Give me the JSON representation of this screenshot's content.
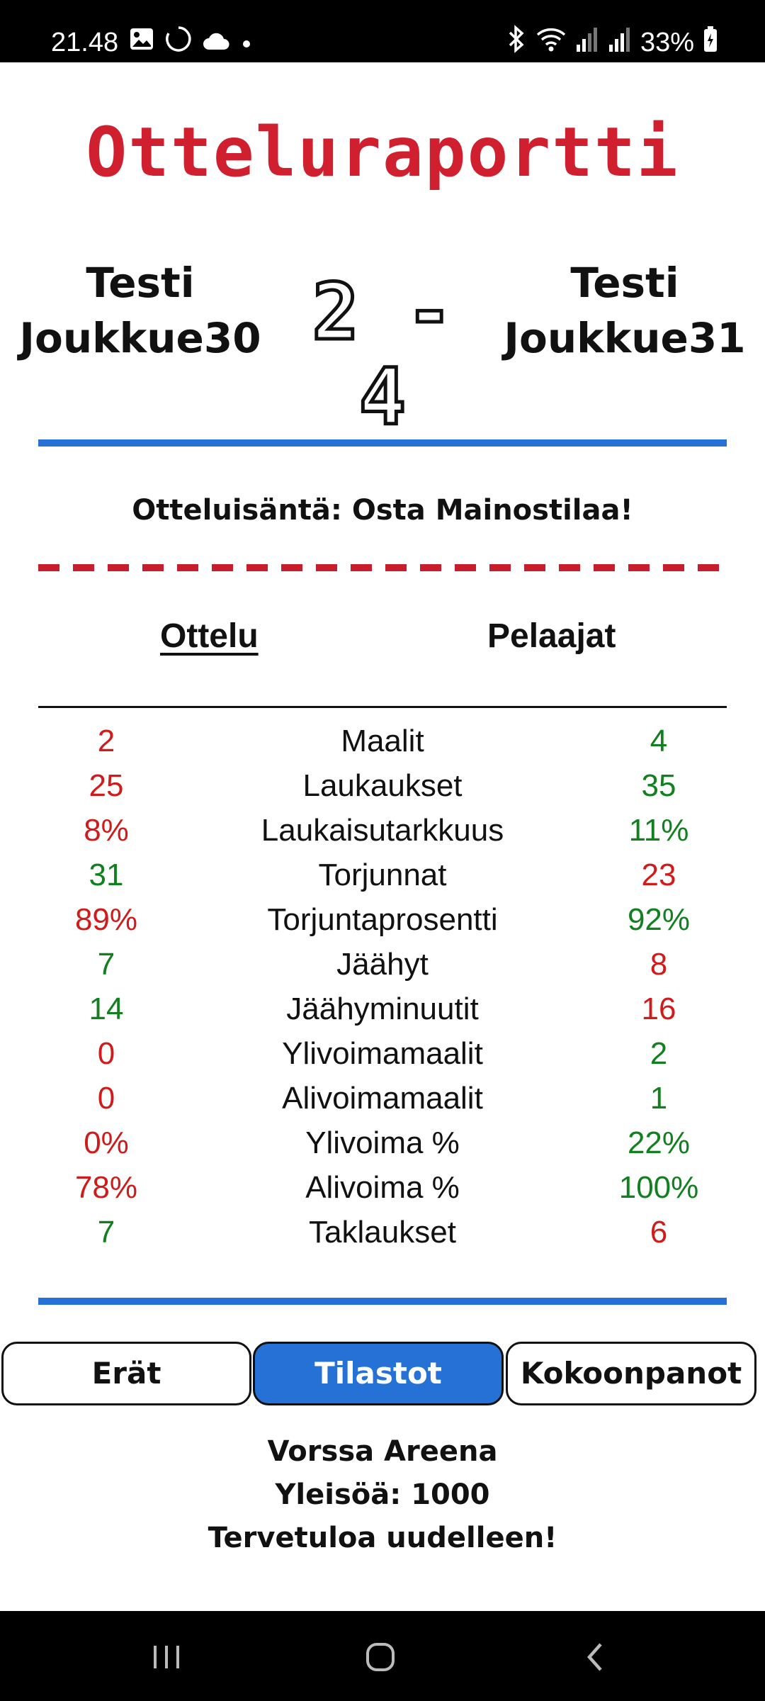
{
  "status_bar": {
    "time": "21.48",
    "battery": "33%",
    "left_icons": [
      "image-icon",
      "sync-icon",
      "cloud-icon",
      "dot-icon"
    ],
    "right_icons": [
      "bluetooth-icon",
      "wifi-icon",
      "signal-icon",
      "signal-icon",
      "battery-charging-icon"
    ]
  },
  "title": "Otteluraportti",
  "match": {
    "home_team": "Testi Joukkue30",
    "away_team": "Testi Joukkue31",
    "score": "2 - 4"
  },
  "host": "Otteluisäntä: Osta Mainostilaa!",
  "subtabs": {
    "match": "Ottelu",
    "players": "Pelaajat"
  },
  "stats": [
    {
      "label": "Maalit",
      "home": "2",
      "away": "4",
      "home_color": "red",
      "away_color": "green"
    },
    {
      "label": "Laukaukset",
      "home": "25",
      "away": "35",
      "home_color": "red",
      "away_color": "green"
    },
    {
      "label": "Laukaisutarkkuus",
      "home": "8%",
      "away": "11%",
      "home_color": "red",
      "away_color": "green"
    },
    {
      "label": "Torjunnat",
      "home": "31",
      "away": "23",
      "home_color": "green",
      "away_color": "red"
    },
    {
      "label": "Torjuntaprosentti",
      "home": "89%",
      "away": "92%",
      "home_color": "red",
      "away_color": "green"
    },
    {
      "label": "Jäähyt",
      "home": "7",
      "away": "8",
      "home_color": "green",
      "away_color": "red"
    },
    {
      "label": "Jäähyminuutit",
      "home": "14",
      "away": "16",
      "home_color": "green",
      "away_color": "red"
    },
    {
      "label": "Ylivoimamaalit",
      "home": "0",
      "away": "2",
      "home_color": "red",
      "away_color": "green"
    },
    {
      "label": "Alivoimamaalit",
      "home": "0",
      "away": "1",
      "home_color": "red",
      "away_color": "green"
    },
    {
      "label": "Ylivoima %",
      "home": "0%",
      "away": "22%",
      "home_color": "red",
      "away_color": "green"
    },
    {
      "label": "Alivoima %",
      "home": "78%",
      "away": "100%",
      "home_color": "red",
      "away_color": "green"
    },
    {
      "label": "Taklaukset",
      "home": "7",
      "away": "6",
      "home_color": "green",
      "away_color": "red"
    }
  ],
  "buttons": {
    "periods": "Erät",
    "stats": "Tilastot",
    "lineups": "Kokoonpanot"
  },
  "footer": {
    "arena": "Vorssa Areena",
    "attendance": "Yleisöä: 1000",
    "farewell": "Tervetuloa uudelleen!"
  },
  "colors": {
    "title_red": "#d01f2f",
    "accent_blue": "#2671d6",
    "stat_red": "#d11a1a",
    "stat_green": "#11801e"
  },
  "nav_bar": {
    "icons": [
      "recent-apps-icon",
      "home-icon",
      "back-icon"
    ]
  }
}
